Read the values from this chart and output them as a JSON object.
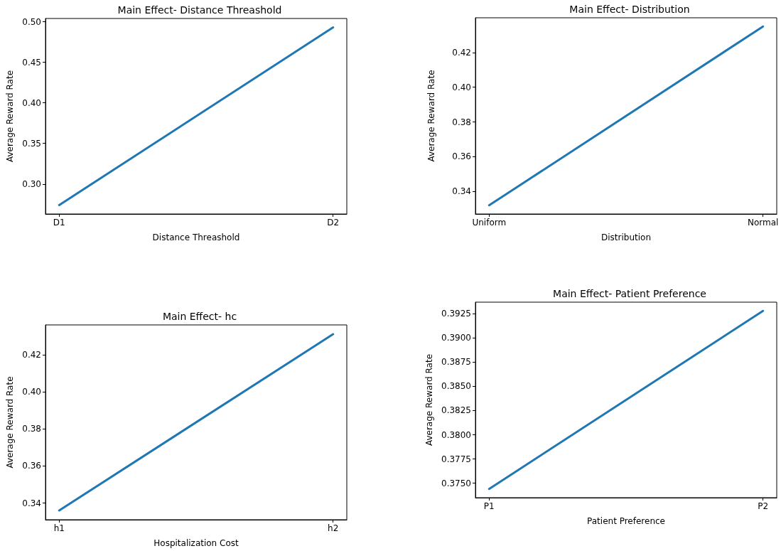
{
  "chart_data": [
    {
      "type": "line",
      "title": "Main Effect- Distance Threashold",
      "xlabel": "Distance Threashold",
      "ylabel": "Average Reward Rate",
      "categories": [
        "D1",
        "D2"
      ],
      "series": [
        {
          "color": "#1f77b4",
          "values": [
            0.274,
            0.493
          ]
        }
      ],
      "ylim": [
        0.263,
        0.504
      ],
      "yticks": [
        {
          "value": 0.3,
          "label": "0.30"
        },
        {
          "value": 0.35,
          "label": "0.35"
        },
        {
          "value": 0.4,
          "label": "0.40"
        },
        {
          "value": 0.45,
          "label": "0.45"
        },
        {
          "value": 0.5,
          "label": "0.50"
        }
      ],
      "grid": false,
      "marker": "none",
      "line_style": "solid"
    },
    {
      "type": "line",
      "title": "Main Effect- Distribution",
      "xlabel": "Distribution",
      "ylabel": "Average Reward Rate",
      "categories": [
        "Uniform",
        "Normal"
      ],
      "series": [
        {
          "color": "#1f77b4",
          "values": [
            0.332,
            0.435
          ]
        }
      ],
      "ylim": [
        0.327,
        0.44
      ],
      "yticks": [
        {
          "value": 0.34,
          "label": "0.34"
        },
        {
          "value": 0.36,
          "label": "0.36"
        },
        {
          "value": 0.38,
          "label": "0.38"
        },
        {
          "value": 0.4,
          "label": "0.40"
        },
        {
          "value": 0.42,
          "label": "0.42"
        }
      ],
      "grid": false,
      "marker": "none",
      "line_style": "solid"
    },
    {
      "type": "line",
      "title": "Main Effect- hc",
      "xlabel": "Hospitalization Cost",
      "ylabel": "Average Reward Rate",
      "categories": [
        "h1",
        "h2"
      ],
      "series": [
        {
          "color": "#1f77b4",
          "values": [
            0.336,
            0.431
          ]
        }
      ],
      "ylim": [
        0.331,
        0.436
      ],
      "yticks": [
        {
          "value": 0.34,
          "label": "0.34"
        },
        {
          "value": 0.36,
          "label": "0.36"
        },
        {
          "value": 0.38,
          "label": "0.38"
        },
        {
          "value": 0.4,
          "label": "0.40"
        },
        {
          "value": 0.42,
          "label": "0.42"
        }
      ],
      "grid": false,
      "marker": "none",
      "line_style": "solid"
    },
    {
      "type": "line",
      "title": "Main Effect- Patient Preference",
      "xlabel": "Patient Preference",
      "ylabel": "Average Reward Rate",
      "categories": [
        "P1",
        "P2"
      ],
      "series": [
        {
          "color": "#1f77b4",
          "values": [
            0.3744,
            0.3928
          ]
        }
      ],
      "ylim": [
        0.3735,
        0.3937
      ],
      "yticks": [
        {
          "value": 0.375,
          "label": "0.3750"
        },
        {
          "value": 0.3775,
          "label": "0.3775"
        },
        {
          "value": 0.38,
          "label": "0.3800"
        },
        {
          "value": 0.3825,
          "label": "0.3825"
        },
        {
          "value": 0.385,
          "label": "0.3850"
        },
        {
          "value": 0.3875,
          "label": "0.3875"
        },
        {
          "value": 0.39,
          "label": "0.3900"
        },
        {
          "value": 0.3925,
          "label": "0.3925"
        }
      ],
      "grid": false,
      "marker": "none",
      "line_style": "solid"
    }
  ]
}
